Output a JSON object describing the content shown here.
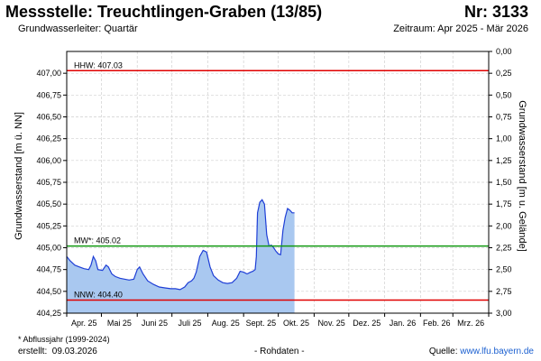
{
  "header": {
    "title": "Messstelle: Treuchtlingen-Graben (13/85)",
    "number": "Nr: 3133",
    "subtitle": "Grundwasserleiter: Quartär",
    "period": "Zeitraum: Apr 2025 - Mär 2026"
  },
  "footer": {
    "footnote": "* Abflussjahr (1999-2024)",
    "created_label": "erstellt:",
    "created_date": "09.03.2026",
    "rawdata": "- Rohdaten -",
    "source_label": "Quelle:",
    "source_link": "www.lfu.bayern.de"
  },
  "colors": {
    "area_fill": "#a9c8f0",
    "line": "#1f3fd6",
    "hhw_line": "#e00000",
    "mw_line": "#119911",
    "nnw_line": "#e00000",
    "grid": "#d0d0d0"
  },
  "chart_data": {
    "type": "area",
    "xlabel": "",
    "ylabel": "Grundwasserstand [m ü. NN]",
    "ylabel_right": "Grundwasserstand [m u. Gelände]",
    "ylim": [
      404.25,
      407.0
    ],
    "ylim_right": [
      3.0,
      0.25
    ],
    "yticks": [
      "404,25",
      "404,50",
      "404,75",
      "405,00",
      "405,25",
      "405,50",
      "405,75",
      "406,00",
      "406,25",
      "406,50",
      "406,75",
      "407,00"
    ],
    "yticks_right": [
      "3,00",
      "2,75",
      "2,50",
      "2,25",
      "2,00",
      "1,75",
      "1,50",
      "1,25",
      "1,00",
      "0,75",
      "0,50",
      "0,25",
      "0,00"
    ],
    "months": [
      "Apr. 25",
      "Mai 25",
      "Juni 25",
      "Juli 25",
      "Aug. 25",
      "Sept. 25",
      "Okt. 25",
      "Nov. 25",
      "Dez. 25",
      "Jan. 26",
      "Feb. 26",
      "Mrz. 26"
    ],
    "grid": true,
    "reference_lines": [
      {
        "name": "HHW",
        "label": "HHW: 407.03",
        "value": 407.03
      },
      {
        "name": "MW",
        "label": "MW*: 405.02",
        "value": 405.02
      },
      {
        "name": "NNW",
        "label": "NNW: 404.40",
        "value": 404.4
      }
    ],
    "series": [
      {
        "x": [
          "2025-04-01",
          "2025-04-04",
          "2025-04-08",
          "2025-04-12",
          "2025-04-16",
          "2025-04-20",
          "2025-04-22",
          "2025-04-24",
          "2025-04-26",
          "2025-04-28",
          "2025-05-02",
          "2025-05-05",
          "2025-05-07",
          "2025-05-10",
          "2025-05-13",
          "2025-05-17",
          "2025-05-21",
          "2025-05-25",
          "2025-05-29",
          "2025-06-01",
          "2025-06-03",
          "2025-06-06",
          "2025-06-10",
          "2025-06-15",
          "2025-06-20",
          "2025-06-25",
          "2025-06-30",
          "2025-07-04",
          "2025-07-08",
          "2025-07-12",
          "2025-07-15",
          "2025-07-18",
          "2025-07-20",
          "2025-07-22",
          "2025-07-25",
          "2025-07-28",
          "2025-07-31",
          "2025-08-03",
          "2025-08-06",
          "2025-08-10",
          "2025-08-14",
          "2025-08-18",
          "2025-08-22",
          "2025-08-26",
          "2025-08-29",
          "2025-09-01",
          "2025-09-04",
          "2025-09-07",
          "2025-09-09",
          "2025-09-11",
          "2025-09-12",
          "2025-09-13",
          "2025-09-15",
          "2025-09-17",
          "2025-09-19",
          "2025-09-21",
          "2025-09-23",
          "2025-09-25",
          "2025-09-27",
          "2025-09-29",
          "2025-10-01",
          "2025-10-03",
          "2025-10-05",
          "2025-10-07",
          "2025-10-09",
          "2025-10-11",
          "2025-10-13",
          "2025-10-15"
        ],
        "values": [
          404.9,
          404.85,
          404.8,
          404.78,
          404.76,
          404.75,
          404.8,
          404.9,
          404.85,
          404.75,
          404.74,
          404.8,
          404.78,
          404.7,
          404.67,
          404.65,
          404.64,
          404.63,
          404.64,
          404.75,
          404.78,
          404.7,
          404.62,
          404.58,
          404.55,
          404.54,
          404.53,
          404.53,
          404.52,
          404.55,
          404.6,
          404.62,
          404.65,
          404.72,
          404.9,
          404.97,
          404.95,
          404.78,
          404.68,
          404.63,
          404.6,
          404.59,
          404.6,
          404.65,
          404.73,
          404.72,
          404.7,
          404.72,
          404.73,
          404.75,
          404.9,
          405.4,
          405.52,
          405.55,
          405.5,
          405.15,
          405.02,
          405.03,
          405.0,
          404.96,
          404.93,
          404.92,
          405.2,
          405.35,
          405.45,
          405.43,
          405.4,
          405.4
        ]
      }
    ]
  }
}
